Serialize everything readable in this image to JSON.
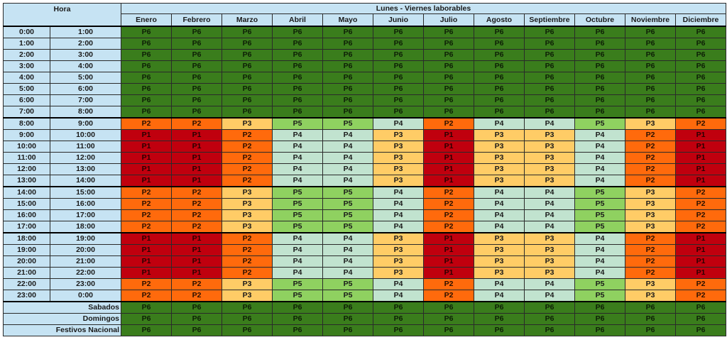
{
  "header": {
    "hora_label": "Hora",
    "title": "Lunes - Viernes laborables",
    "months": [
      "Enero",
      "Febrero",
      "Marzo",
      "Abril",
      "Mayo",
      "Junio",
      "Julio",
      "Agosto",
      "Septiembre",
      "Octubre",
      "Noviembre",
      "Diciembre"
    ]
  },
  "hour_rows": [
    {
      "from": "0:00",
      "to": "1:00",
      "values": [
        "P6",
        "P6",
        "P6",
        "P6",
        "P6",
        "P6",
        "P6",
        "P6",
        "P6",
        "P6",
        "P6",
        "P6"
      ]
    },
    {
      "from": "1:00",
      "to": "2:00",
      "values": [
        "P6",
        "P6",
        "P6",
        "P6",
        "P6",
        "P6",
        "P6",
        "P6",
        "P6",
        "P6",
        "P6",
        "P6"
      ]
    },
    {
      "from": "2:00",
      "to": "3:00",
      "values": [
        "P6",
        "P6",
        "P6",
        "P6",
        "P6",
        "P6",
        "P6",
        "P6",
        "P6",
        "P6",
        "P6",
        "P6"
      ]
    },
    {
      "from": "3:00",
      "to": "4:00",
      "values": [
        "P6",
        "P6",
        "P6",
        "P6",
        "P6",
        "P6",
        "P6",
        "P6",
        "P6",
        "P6",
        "P6",
        "P6"
      ]
    },
    {
      "from": "4:00",
      "to": "5:00",
      "values": [
        "P6",
        "P6",
        "P6",
        "P6",
        "P6",
        "P6",
        "P6",
        "P6",
        "P6",
        "P6",
        "P6",
        "P6"
      ]
    },
    {
      "from": "5:00",
      "to": "6:00",
      "values": [
        "P6",
        "P6",
        "P6",
        "P6",
        "P6",
        "P6",
        "P6",
        "P6",
        "P6",
        "P6",
        "P6",
        "P6"
      ]
    },
    {
      "from": "6:00",
      "to": "7:00",
      "values": [
        "P6",
        "P6",
        "P6",
        "P6",
        "P6",
        "P6",
        "P6",
        "P6",
        "P6",
        "P6",
        "P6",
        "P6"
      ]
    },
    {
      "from": "7:00",
      "to": "8:00",
      "values": [
        "P6",
        "P6",
        "P6",
        "P6",
        "P6",
        "P6",
        "P6",
        "P6",
        "P6",
        "P6",
        "P6",
        "P6"
      ]
    },
    {
      "from": "8:00",
      "to": "9:00",
      "values": [
        "P2",
        "P2",
        "P3",
        "P5",
        "P5",
        "P4",
        "P2",
        "P4",
        "P4",
        "P5",
        "P3",
        "P2"
      ]
    },
    {
      "from": "9:00",
      "to": "10:00",
      "values": [
        "P1",
        "P1",
        "P2",
        "P4",
        "P4",
        "P3",
        "P1",
        "P3",
        "P3",
        "P4",
        "P2",
        "P1"
      ]
    },
    {
      "from": "10:00",
      "to": "11:00",
      "values": [
        "P1",
        "P1",
        "P2",
        "P4",
        "P4",
        "P3",
        "P1",
        "P3",
        "P3",
        "P4",
        "P2",
        "P1"
      ]
    },
    {
      "from": "11:00",
      "to": "12:00",
      "values": [
        "P1",
        "P1",
        "P2",
        "P4",
        "P4",
        "P3",
        "P1",
        "P3",
        "P3",
        "P4",
        "P2",
        "P1"
      ]
    },
    {
      "from": "12:00",
      "to": "13:00",
      "values": [
        "P1",
        "P1",
        "P2",
        "P4",
        "P4",
        "P3",
        "P1",
        "P3",
        "P3",
        "P4",
        "P2",
        "P1"
      ]
    },
    {
      "from": "13:00",
      "to": "14:00",
      "values": [
        "P1",
        "P1",
        "P2",
        "P4",
        "P4",
        "P3",
        "P1",
        "P3",
        "P3",
        "P4",
        "P2",
        "P1"
      ]
    },
    {
      "from": "14:00",
      "to": "15:00",
      "values": [
        "P2",
        "P2",
        "P3",
        "P5",
        "P5",
        "P4",
        "P2",
        "P4",
        "P4",
        "P5",
        "P3",
        "P2"
      ]
    },
    {
      "from": "15:00",
      "to": "16:00",
      "values": [
        "P2",
        "P2",
        "P3",
        "P5",
        "P5",
        "P4",
        "P2",
        "P4",
        "P4",
        "P5",
        "P3",
        "P2"
      ]
    },
    {
      "from": "16:00",
      "to": "17:00",
      "values": [
        "P2",
        "P2",
        "P3",
        "P5",
        "P5",
        "P4",
        "P2",
        "P4",
        "P4",
        "P5",
        "P3",
        "P2"
      ]
    },
    {
      "from": "17:00",
      "to": "18:00",
      "values": [
        "P2",
        "P2",
        "P3",
        "P5",
        "P5",
        "P4",
        "P2",
        "P4",
        "P4",
        "P5",
        "P3",
        "P2"
      ]
    },
    {
      "from": "18:00",
      "to": "19:00",
      "values": [
        "P1",
        "P1",
        "P2",
        "P4",
        "P4",
        "P3",
        "P1",
        "P3",
        "P3",
        "P4",
        "P2",
        "P1"
      ]
    },
    {
      "from": "19:00",
      "to": "20:00",
      "values": [
        "P1",
        "P1",
        "P2",
        "P4",
        "P4",
        "P3",
        "P1",
        "P3",
        "P3",
        "P4",
        "P2",
        "P1"
      ]
    },
    {
      "from": "20:00",
      "to": "21:00",
      "values": [
        "P1",
        "P1",
        "P2",
        "P4",
        "P4",
        "P3",
        "P1",
        "P3",
        "P3",
        "P4",
        "P2",
        "P1"
      ]
    },
    {
      "from": "21:00",
      "to": "22:00",
      "values": [
        "P1",
        "P1",
        "P2",
        "P4",
        "P4",
        "P3",
        "P1",
        "P3",
        "P3",
        "P4",
        "P2",
        "P1"
      ]
    },
    {
      "from": "22:00",
      "to": "23:00",
      "values": [
        "P2",
        "P2",
        "P3",
        "P5",
        "P5",
        "P4",
        "P2",
        "P4",
        "P4",
        "P5",
        "P3",
        "P2"
      ]
    },
    {
      "from": "23:00",
      "to": "0:00",
      "values": [
        "P2",
        "P2",
        "P3",
        "P5",
        "P5",
        "P4",
        "P2",
        "P4",
        "P4",
        "P5",
        "P3",
        "P2"
      ]
    }
  ],
  "day_rows": [
    {
      "label": "Sabados",
      "values": [
        "P6",
        "P6",
        "P6",
        "P6",
        "P6",
        "P6",
        "P6",
        "P6",
        "P6",
        "P6",
        "P6",
        "P6"
      ]
    },
    {
      "label": "Domingos",
      "values": [
        "P6",
        "P6",
        "P6",
        "P6",
        "P6",
        "P6",
        "P6",
        "P6",
        "P6",
        "P6",
        "P6",
        "P6"
      ]
    },
    {
      "label": "Festivos Nacional",
      "values": [
        "P6",
        "P6",
        "P6",
        "P6",
        "P6",
        "P6",
        "P6",
        "P6",
        "P6",
        "P6",
        "P6",
        "P6"
      ]
    }
  ],
  "period_colors": {
    "P1": "#c0000e",
    "P2": "#ff6a0c",
    "P3": "#ffcc66",
    "P4": "#c1e3cf",
    "P5": "#8fd160",
    "P6": "#3a7d1c"
  },
  "header_bg_color": "#c6e3f3"
}
